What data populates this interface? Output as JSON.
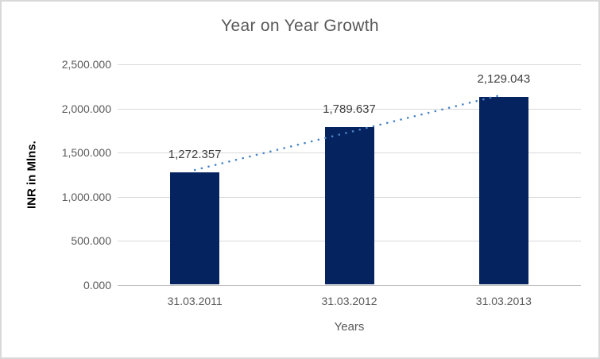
{
  "chart_data": {
    "type": "bar",
    "title": "Year on Year Growth",
    "xlabel": "Years",
    "ylabel": "INR in Mlns.",
    "categories": [
      "31.03.2011",
      "31.03.2012",
      "31.03.2013"
    ],
    "values": [
      1272.357,
      1789.637,
      2129.043
    ],
    "data_labels": [
      "1,272.357",
      "1,789.637",
      "2,129.043"
    ],
    "ylim": [
      0,
      2500
    ],
    "ytick_interval": 500,
    "ytick_values": [
      0,
      500,
      1000,
      1500,
      2000,
      2500
    ],
    "ytick_labels": [
      "0.000",
      "500.000",
      "1,000.000",
      "1,500.000",
      "2,000.000",
      "2,500.000"
    ],
    "grid": true,
    "legend": "none",
    "trendline": {
      "type": "linear",
      "style": "dotted"
    },
    "colors": {
      "bar": "#05235E",
      "trendline": "#4A86C8",
      "gridline": "#D9D9D9",
      "axis_line": "#BFBFBF",
      "border": "#D9D9D9",
      "background": "#FFFFFF",
      "title_text": "#595959",
      "tick_text": "#595959",
      "data_label_text": "#404040",
      "ylabel_text": "#000000",
      "xlabel_text": "#595959"
    }
  }
}
